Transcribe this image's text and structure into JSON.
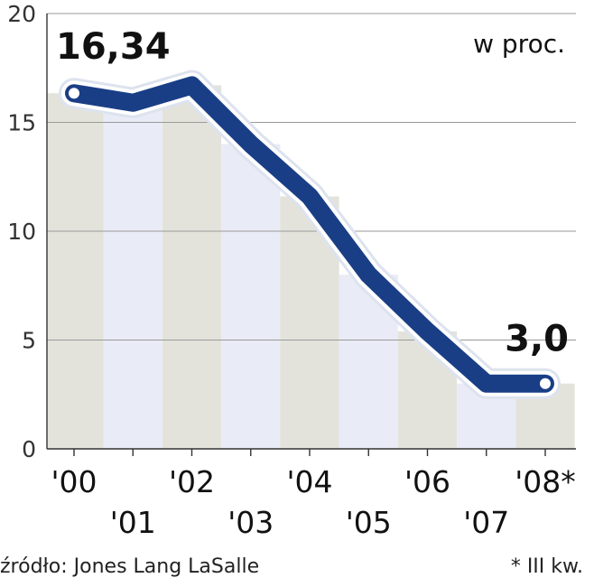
{
  "chart_data": {
    "type": "line",
    "title": "",
    "unit_label": "w proc.",
    "xlabel": "",
    "ylabel": "",
    "categories": [
      "'00",
      "'01",
      "'02",
      "'03",
      "'04",
      "'05",
      "'06",
      "'07",
      "'08*"
    ],
    "series": [
      {
        "values": [
          16.34,
          15.9,
          16.7,
          14.0,
          11.6,
          8.0,
          5.4,
          3.0,
          3.0
        ]
      }
    ],
    "yticks": [
      0,
      5,
      10,
      15,
      20
    ],
    "ylim": [
      0,
      20
    ],
    "grid": true,
    "data_labels": [
      {
        "index": 0,
        "text": "16,34"
      },
      {
        "index": 8,
        "text": "3,0"
      }
    ],
    "source": "źródło: Jones Lang LaSalle",
    "footnote": "* III kw.",
    "colors": {
      "line": "#1a3e86",
      "line_glow": "#dde3ee",
      "band_dark": "#e3e3dc",
      "band_light": "#e9ebf6",
      "grid": "#9a9a9a",
      "axis": "#333333"
    }
  }
}
